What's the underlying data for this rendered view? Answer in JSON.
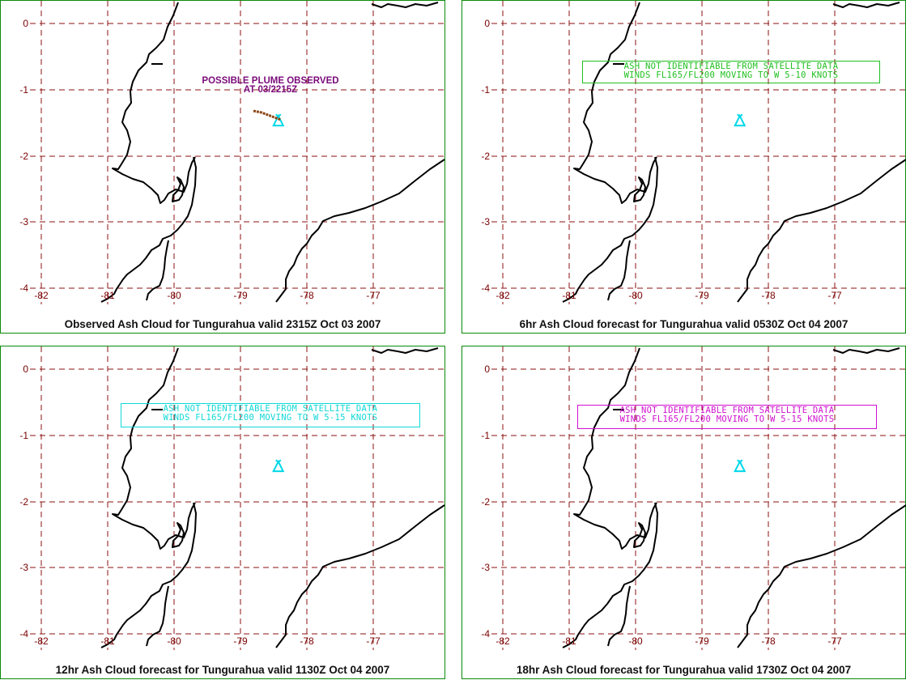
{
  "colors": {
    "frame": "#0a8a0a",
    "grid": "#8b1010",
    "tick_label": "#7a0000",
    "coast": "#000000",
    "volcano_marker": "#00d8e8",
    "plume": "#8b4513",
    "plume_label": "#7a0a7a",
    "advisory_green": "#20c020",
    "advisory_cyan": "#10d8d8",
    "advisory_magenta": "#d010d0"
  },
  "axes": {
    "longitudes": [
      "-82",
      "-81",
      "-80",
      "-79",
      "-78",
      "-77"
    ],
    "latitudes": [
      "0",
      "-1",
      "-2",
      "-3",
      "-4"
    ]
  },
  "volcano": {
    "name": "Tungurahua",
    "lon": -78.43,
    "lat": -1.47,
    "icon": "volcano-triangle-icon"
  },
  "panels": [
    {
      "caption": "Observed Ash Cloud for Tungurahua valid 2315Z Oct 03 2007",
      "plume_label_line1": "POSSIBLE PLUME OBSERVED",
      "plume_label_line2": "AT 03/2215Z"
    },
    {
      "caption": "6hr Ash Cloud forecast for Tungurahua valid 0530Z Oct 04 2007",
      "advisory_line1": "ASH NOT IDENTIFIABLE FROM SATELLITE DATA",
      "advisory_line2": "WINDS FL165/FL200 MOVING TO W 5-10 KNOTS"
    },
    {
      "caption": "12hr Ash Cloud forecast for Tungurahua valid 1130Z Oct 04 2007",
      "advisory_line1": "ASH NOT IDENTIFIABLE FROM SATELLITE DATA",
      "advisory_line2": "WINDS FL165/FL200 MOVING TO W 5-15 KNOTS"
    },
    {
      "caption": "18hr Ash Cloud forecast for Tungurahua valid 1730Z Oct 04 2007",
      "advisory_line1": "ASH NOT IDENTIFIABLE FROM SATELLITE DATA",
      "advisory_line2": "WINDS FL165/FL200 MOVING TO W 5-15 KNOTS"
    }
  ]
}
